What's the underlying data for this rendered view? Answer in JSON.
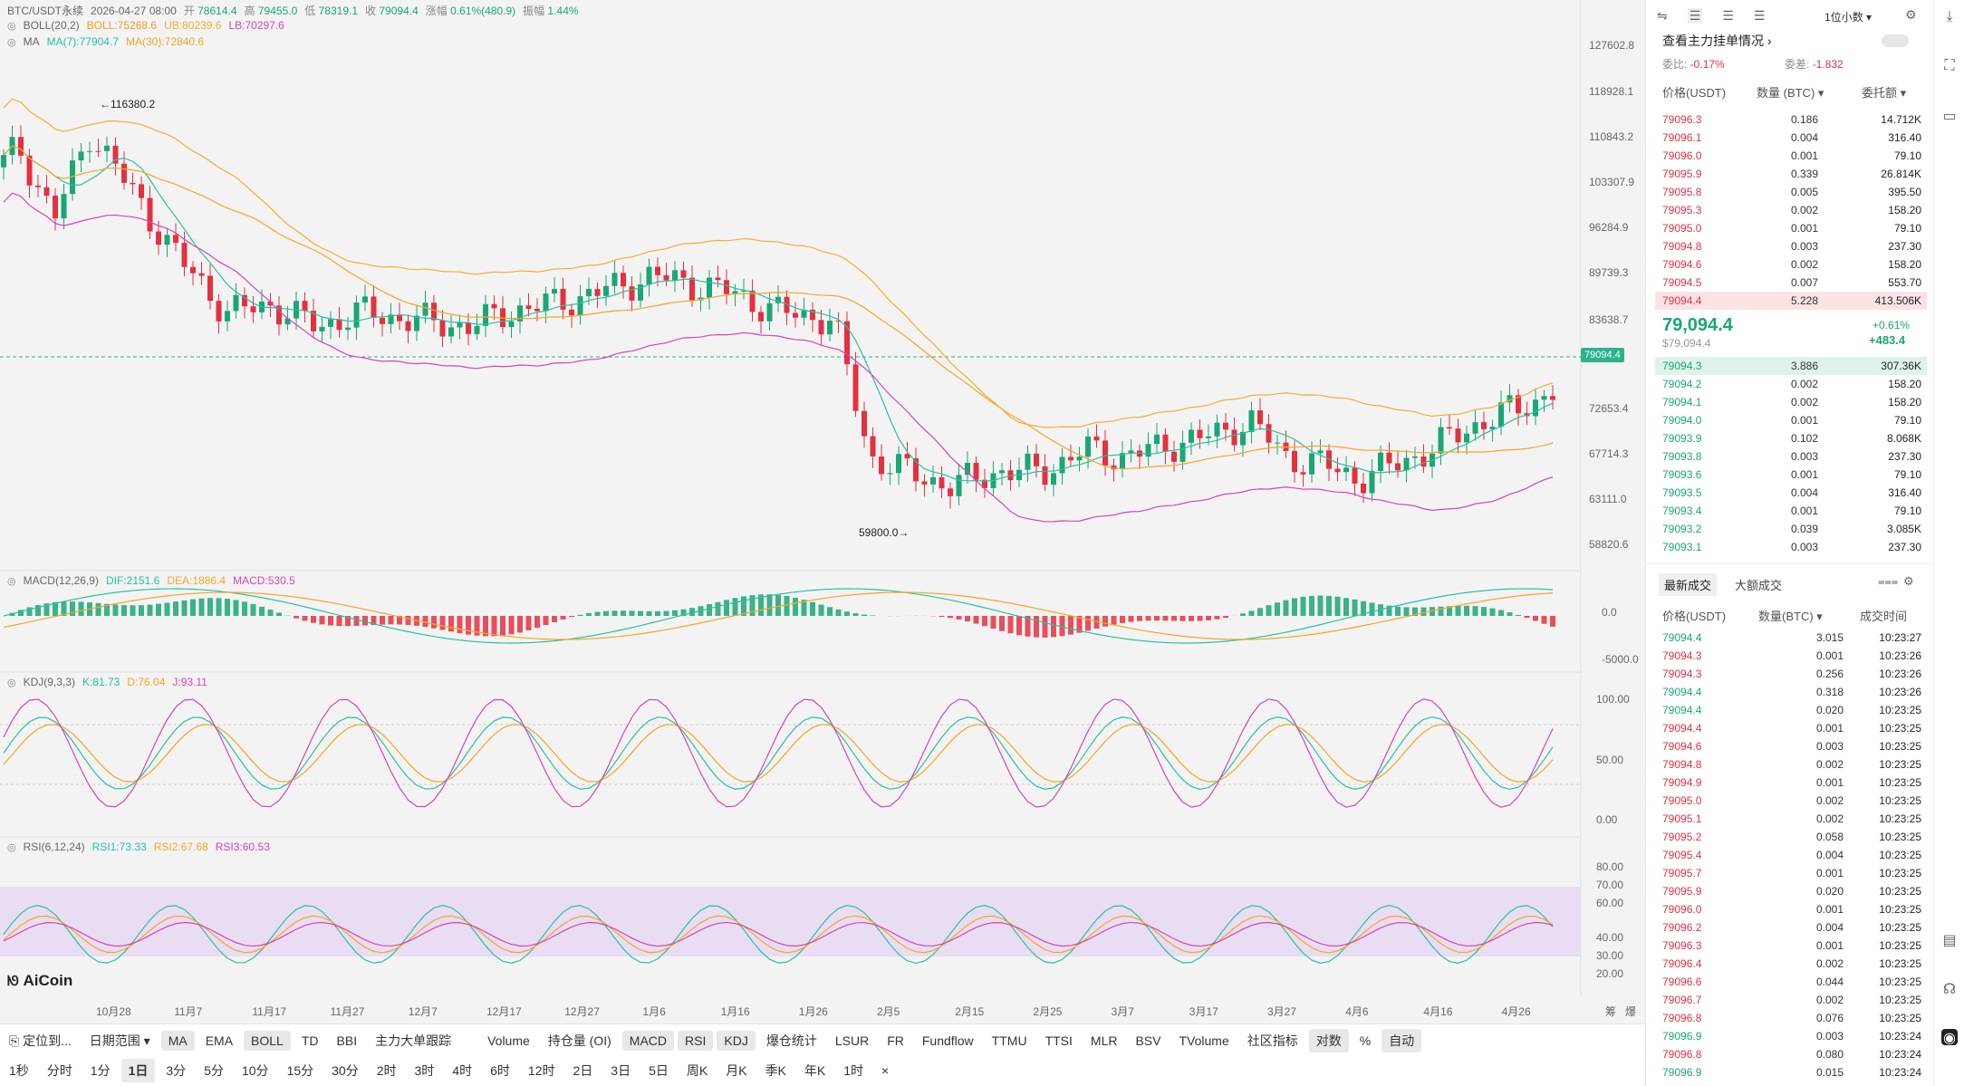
{
  "header": {
    "symbol": "BTC/USDT永续",
    "datetime": "2026-04-27 08:00",
    "open_label": "开",
    "open": "78614.4",
    "high_label": "高",
    "high": "79455.0",
    "low_label": "低",
    "low": "78319.1",
    "close_label": "收",
    "close": "79094.4",
    "change_label": "涨幅",
    "change": "0.61%(480.9)",
    "amp_label": "振幅",
    "amp": "1.44%"
  },
  "legends": {
    "boll": {
      "name": "BOLL(20,2)",
      "boll": "BOLL:75268.6",
      "ub": "UB:80239.6",
      "lb": "LB:70297.6"
    },
    "ma": {
      "name": "MA",
      "ma7": "MA(7):77904.7",
      "ma30": "MA(30):72840.6"
    },
    "macd": {
      "name": "MACD(12,26,9)",
      "dif": "DIF:2151.6",
      "dea": "DEA:1886.4",
      "macd": "MACD:530.5"
    },
    "kdj": {
      "name": "KDJ(9,3,3)",
      "k": "K:81.73",
      "d": "D:76.04",
      "j": "J:93.11"
    },
    "rsi": {
      "name": "RSI(6,12,24)",
      "r1": "RSI1:73.33",
      "r2": "RSI2:67.68",
      "r3": "RSI3:60.53"
    }
  },
  "price_axis": [
    "127602.8",
    "118928.1",
    "110843.2",
    "103307.9",
    "96284.9",
    "89739.3",
    "83638.7",
    "72653.4",
    "67714.3",
    "63111.0",
    "58820.6"
  ],
  "current_price_tag": "79094.4",
  "high_marker": "116380.2",
  "low_marker": "59800.0",
  "macd_axis": [
    "0.0",
    "-5000.0"
  ],
  "kdj_axis": [
    "100.00",
    "50.00",
    "0.00"
  ],
  "rsi_axis": [
    "80.00",
    "70.00",
    "60.00",
    "40.00",
    "30.00",
    "20.00"
  ],
  "date_axis": [
    "10月28",
    "11月7",
    "11月17",
    "11月27",
    "12月7",
    "12月17",
    "12月27",
    "1月6",
    "1月16",
    "1月26",
    "2月5",
    "2月15",
    "2月25",
    "3月7",
    "3月17",
    "3月27",
    "4月6",
    "4月16",
    "4月26"
  ],
  "date_axis_right": [
    "筹",
    "爆"
  ],
  "logo": "AiCoin",
  "toolbar_row1": {
    "locate": "定位到...",
    "range": "日期范围",
    "indicators": [
      "MA",
      "EMA",
      "BOLL",
      "TD",
      "BBI",
      "主力大单跟踪",
      "Volume",
      "持仓量 (OI)",
      "MACD",
      "RSI",
      "KDJ",
      "爆仓统计",
      "LSUR",
      "FR",
      "Fundflow",
      "TTMU",
      "TTSI",
      "MLR",
      "BSV",
      "TVolume"
    ],
    "community": "社区指标",
    "log": "对数",
    "percent": "%",
    "auto": "自动"
  },
  "toolbar_row2": {
    "intervals": [
      "1秒",
      "分时",
      "1分",
      "1日",
      "3分",
      "5分",
      "10分",
      "15分",
      "30分",
      "2时",
      "3时",
      "4时",
      "6时",
      "12时",
      "2日",
      "3日",
      "5日",
      "周K",
      "月K",
      "季K",
      "年K",
      "1时"
    ],
    "close": "×"
  },
  "orderbook": {
    "decimals": "1位小数",
    "title": "查看主力挂单情况",
    "ratio_label": "委比:",
    "ratio": "-0.17%",
    "diff_label": "委差:",
    "diff": "-1.832",
    "col_price": "价格(USDT)",
    "col_qty": "数量 (BTC)",
    "col_total": "委托额",
    "asks": [
      [
        "79096.3",
        "0.186",
        "14.712K"
      ],
      [
        "79096.1",
        "0.004",
        "316.40"
      ],
      [
        "79096.0",
        "0.001",
        "79.10"
      ],
      [
        "79095.9",
        "0.339",
        "26.814K"
      ],
      [
        "79095.8",
        "0.005",
        "395.50"
      ],
      [
        "79095.3",
        "0.002",
        "158.20"
      ],
      [
        "79095.0",
        "0.001",
        "79.10"
      ],
      [
        "79094.8",
        "0.003",
        "237.30"
      ],
      [
        "79094.6",
        "0.002",
        "158.20"
      ],
      [
        "79094.5",
        "0.007",
        "553.70"
      ],
      [
        "79094.4",
        "5.228",
        "413.506K"
      ]
    ],
    "last_price": "79,094.4",
    "last_price_sub": "$79,094.4",
    "last_change_pct": "+0.61%",
    "last_change": "+483.4",
    "bids": [
      [
        "79094.3",
        "3.886",
        "307.36K"
      ],
      [
        "79094.2",
        "0.002",
        "158.20"
      ],
      [
        "79094.1",
        "0.002",
        "158.20"
      ],
      [
        "79094.0",
        "0.001",
        "79.10"
      ],
      [
        "79093.9",
        "0.102",
        "8.068K"
      ],
      [
        "79093.8",
        "0.003",
        "237.30"
      ],
      [
        "79093.6",
        "0.001",
        "79.10"
      ],
      [
        "79093.5",
        "0.004",
        "316.40"
      ],
      [
        "79093.4",
        "0.001",
        "79.10"
      ],
      [
        "79093.2",
        "0.039",
        "3.085K"
      ],
      [
        "79093.1",
        "0.003",
        "237.30"
      ]
    ]
  },
  "trades": {
    "tab_latest": "最新成交",
    "tab_big": "大额成交",
    "col_price": "价格(USDT)",
    "col_qty": "数量(BTC)",
    "col_time": "成交时间",
    "rows": [
      [
        "79094.4",
        "3.015",
        "10:23:27",
        "b"
      ],
      [
        "79094.3",
        "0.001",
        "10:23:26",
        "s"
      ],
      [
        "79094.3",
        "0.256",
        "10:23:26",
        "s"
      ],
      [
        "79094.4",
        "0.318",
        "10:23:26",
        "b"
      ],
      [
        "79094.4",
        "0.020",
        "10:23:25",
        "b"
      ],
      [
        "79094.4",
        "0.001",
        "10:23:25",
        "s"
      ],
      [
        "79094.6",
        "0.003",
        "10:23:25",
        "s"
      ],
      [
        "79094.8",
        "0.002",
        "10:23:25",
        "s"
      ],
      [
        "79094.9",
        "0.001",
        "10:23:25",
        "s"
      ],
      [
        "79095.0",
        "0.002",
        "10:23:25",
        "s"
      ],
      [
        "79095.1",
        "0.002",
        "10:23:25",
        "s"
      ],
      [
        "79095.2",
        "0.058",
        "10:23:25",
        "s"
      ],
      [
        "79095.4",
        "0.004",
        "10:23:25",
        "s"
      ],
      [
        "79095.7",
        "0.001",
        "10:23:25",
        "s"
      ],
      [
        "79095.9",
        "0.020",
        "10:23:25",
        "s"
      ],
      [
        "79096.0",
        "0.001",
        "10:23:25",
        "s"
      ],
      [
        "79096.2",
        "0.004",
        "10:23:25",
        "s"
      ],
      [
        "79096.3",
        "0.001",
        "10:23:25",
        "s"
      ],
      [
        "79096.4",
        "0.002",
        "10:23:25",
        "s"
      ],
      [
        "79096.6",
        "0.044",
        "10:23:25",
        "s"
      ],
      [
        "79096.7",
        "0.002",
        "10:23:25",
        "s"
      ],
      [
        "79096.8",
        "0.076",
        "10:23:25",
        "s"
      ],
      [
        "79096.9",
        "0.003",
        "10:23:24",
        "b"
      ],
      [
        "79096.8",
        "0.080",
        "10:23:24",
        "s"
      ],
      [
        "79096.9",
        "0.015",
        "10:23:24",
        "b"
      ]
    ]
  },
  "colors": {
    "up": "#1aa675",
    "down": "#e5303f",
    "boll_mid": "#f0a020",
    "boll_up": "#f0b030",
    "boll_low": "#d645b5",
    "ma7": "#27c2a0",
    "ma30": "#f5a623",
    "rsi_band": "#e6d7f2"
  }
}
